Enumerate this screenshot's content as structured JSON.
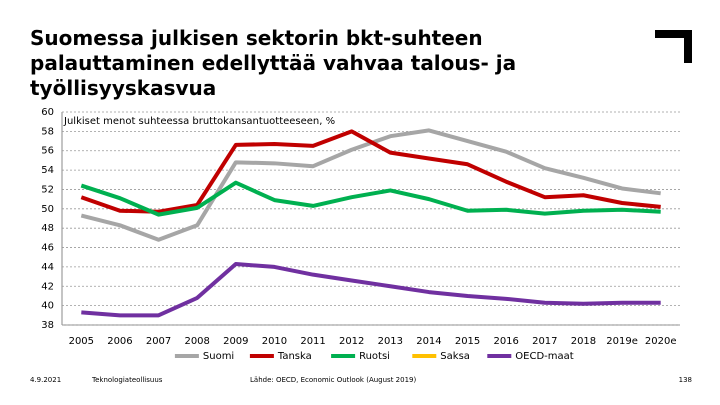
{
  "chart_data": {
    "type": "line",
    "title": "Suomessa julkisen sektorin bkt-suhteen\npalauttaminen edellyttää vahvaa talous- ja\ntyöllisyyskasvua",
    "subtitle": "Julkiset menot suhteessa bruttokansantuotteeseen, %",
    "categories": [
      "2005",
      "2006",
      "2007",
      "2008",
      "2009",
      "2010",
      "2011",
      "2012",
      "2013",
      "2014",
      "2015",
      "2016",
      "2017",
      "2018",
      "2019e",
      "2020e"
    ],
    "series": [
      {
        "name": "Suomi",
        "color": "#a6a6a6",
        "values": [
          49.3,
          48.3,
          46.8,
          48.3,
          54.8,
          54.7,
          54.4,
          56.1,
          57.5,
          58.1,
          57.0,
          55.9,
          54.2,
          53.2,
          52.1,
          51.6
        ]
      },
      {
        "name": "Tanska",
        "color": "#c00000",
        "values": [
          51.2,
          49.8,
          49.7,
          50.4,
          56.6,
          56.7,
          56.5,
          58.0,
          55.8,
          55.2,
          54.6,
          52.8,
          51.2,
          51.4,
          50.6,
          50.2
        ]
      },
      {
        "name": "Ruotsi",
        "color": "#00b050",
        "values": [
          52.4,
          51.1,
          49.4,
          50.1,
          52.7,
          50.9,
          50.3,
          51.2,
          51.9,
          51.0,
          49.8,
          49.9,
          49.5,
          49.8,
          49.9,
          49.7
        ]
      },
      {
        "name": "Saksa",
        "color": "#ffc000",
        "values": [
          null,
          null,
          null,
          null,
          null,
          null,
          null,
          null,
          null,
          null,
          null,
          null,
          null,
          null,
          null,
          null
        ]
      },
      {
        "name": "OECD-maat",
        "color": "#7030a0",
        "values": [
          39.3,
          39.0,
          39.0,
          40.8,
          44.3,
          44.0,
          43.2,
          42.6,
          42.0,
          41.4,
          41.0,
          40.7,
          40.3,
          40.2,
          40.3,
          40.3
        ]
      }
    ],
    "ylim": [
      38,
      60
    ],
    "yticks": [
      38,
      40,
      42,
      44,
      46,
      48,
      50,
      52,
      54,
      56,
      58,
      60
    ],
    "grid": true,
    "legend": "bottom"
  },
  "footer": {
    "date": "4.9.2021",
    "organization": "Teknologiateollisuus",
    "source": "Lähde: OECD, Economic Outlook (August 2019)",
    "page": "138"
  }
}
